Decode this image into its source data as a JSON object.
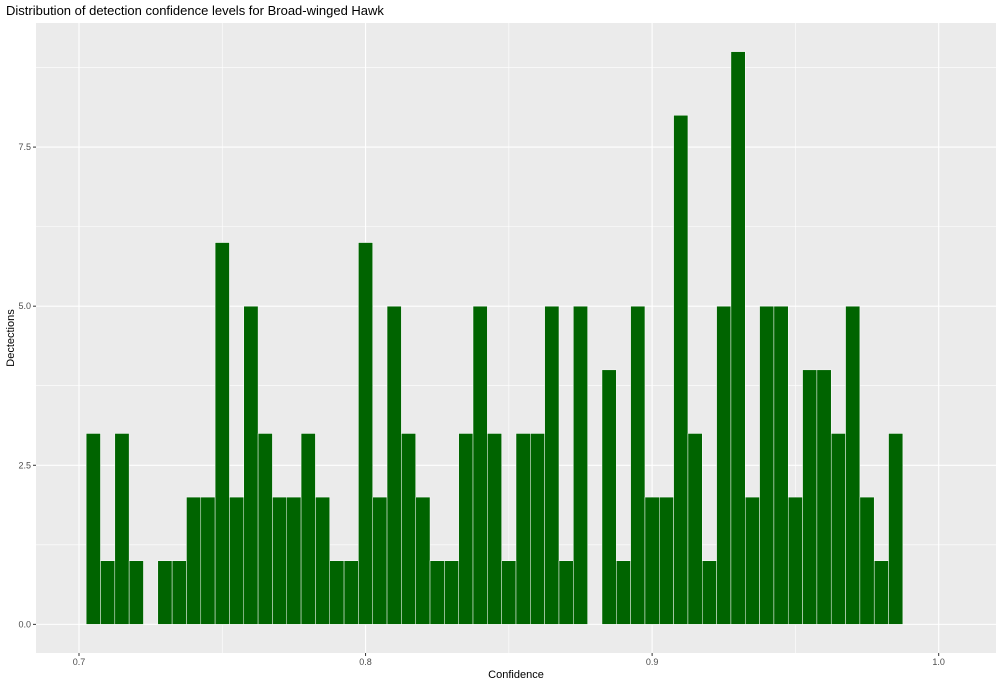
{
  "chart_data": {
    "type": "bar",
    "title": "Distribution of detection confidence levels for Broad-winged Hawk",
    "xlabel": "Confidence",
    "ylabel": "Dectections",
    "xlim": [
      0.685,
      1.02
    ],
    "ylim": [
      -0.45,
      9.45
    ],
    "x_ticks": [
      0.7,
      0.8,
      0.9,
      1.0
    ],
    "x_tick_labels": [
      "0.7",
      "0.8",
      "0.9",
      "1.0"
    ],
    "y_ticks": [
      0,
      2.5,
      5,
      7.5
    ],
    "y_tick_labels": [
      "0.0",
      "2.5",
      "5.0",
      "7.5"
    ],
    "bin_width": 0.005,
    "bin_centers": [
      0.705,
      0.71,
      0.715,
      0.72,
      0.725,
      0.73,
      0.735,
      0.74,
      0.745,
      0.75,
      0.755,
      0.76,
      0.765,
      0.77,
      0.775,
      0.78,
      0.785,
      0.79,
      0.795,
      0.8,
      0.805,
      0.81,
      0.815,
      0.82,
      0.825,
      0.83,
      0.835,
      0.84,
      0.845,
      0.85,
      0.855,
      0.86,
      0.865,
      0.87,
      0.875,
      0.88,
      0.885,
      0.89,
      0.895,
      0.9,
      0.905,
      0.91,
      0.915,
      0.92,
      0.925,
      0.93,
      0.935,
      0.94,
      0.945,
      0.95,
      0.955,
      0.96,
      0.965,
      0.97,
      0.975,
      0.98,
      0.985
    ],
    "values": [
      3,
      1,
      3,
      1,
      0,
      1,
      1,
      2,
      2,
      6,
      2,
      5,
      3,
      2,
      2,
      3,
      2,
      1,
      1,
      6,
      2,
      5,
      3,
      2,
      1,
      1,
      3,
      5,
      3,
      1,
      3,
      3,
      5,
      1,
      5,
      0,
      4,
      1,
      5,
      2,
      2,
      8,
      3,
      1,
      5,
      9,
      2,
      5,
      5,
      2,
      4,
      4,
      3,
      5,
      2,
      1,
      3
    ],
    "bar_color": "#006400",
    "bar_outline_color": "#ffffff",
    "panel_background": "#ebebeb",
    "grid_color": "#ffffff",
    "grid": true,
    "legend": "none"
  }
}
